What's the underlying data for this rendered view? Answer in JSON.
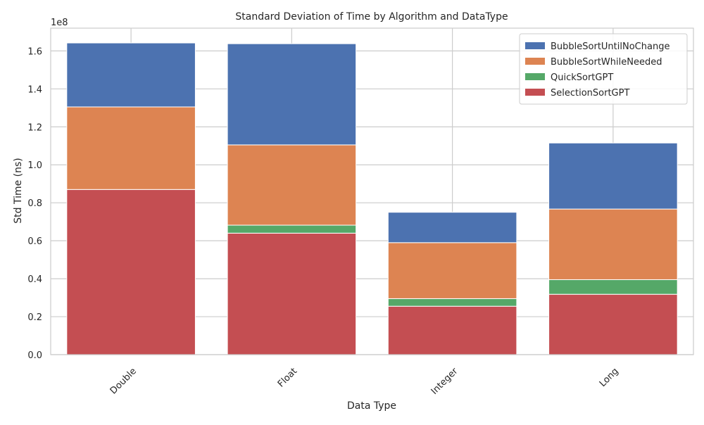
{
  "chart_data": {
    "type": "bar",
    "stacked": true,
    "title": "Standard Deviation of Time by Algorithm and DataType",
    "xlabel": "Data Type",
    "ylabel": "Std Time (ns)",
    "y_offset_label": "1e8",
    "ylim": [
      0,
      1.72
    ],
    "yticks": [
      "0.0",
      "0.2",
      "0.4",
      "0.6",
      "0.8",
      "1.0",
      "1.2",
      "1.4",
      "1.6"
    ],
    "categories": [
      "Double",
      "Float",
      "Integer",
      "Long"
    ],
    "grid": true,
    "legend_position": "top-right",
    "series": [
      {
        "name": "SelectionSortGPT",
        "color": "#c44e52",
        "values": [
          0.87,
          0.64,
          0.255,
          0.318
        ]
      },
      {
        "name": "QuickSortGPT",
        "color": "#55a868",
        "values": [
          0.0,
          0.042,
          0.04,
          0.077
        ]
      },
      {
        "name": "BubbleSortWhileNeeded",
        "color": "#dd8452",
        "values": [
          0.435,
          0.423,
          0.295,
          0.372
        ]
      },
      {
        "name": "BubbleSortUntilNoChange",
        "color": "#4c72b0",
        "values": [
          0.337,
          0.533,
          0.16,
          0.348
        ]
      }
    ],
    "legend_order": [
      "BubbleSortUntilNoChange",
      "BubbleSortWhileNeeded",
      "QuickSortGPT",
      "SelectionSortGPT"
    ]
  }
}
